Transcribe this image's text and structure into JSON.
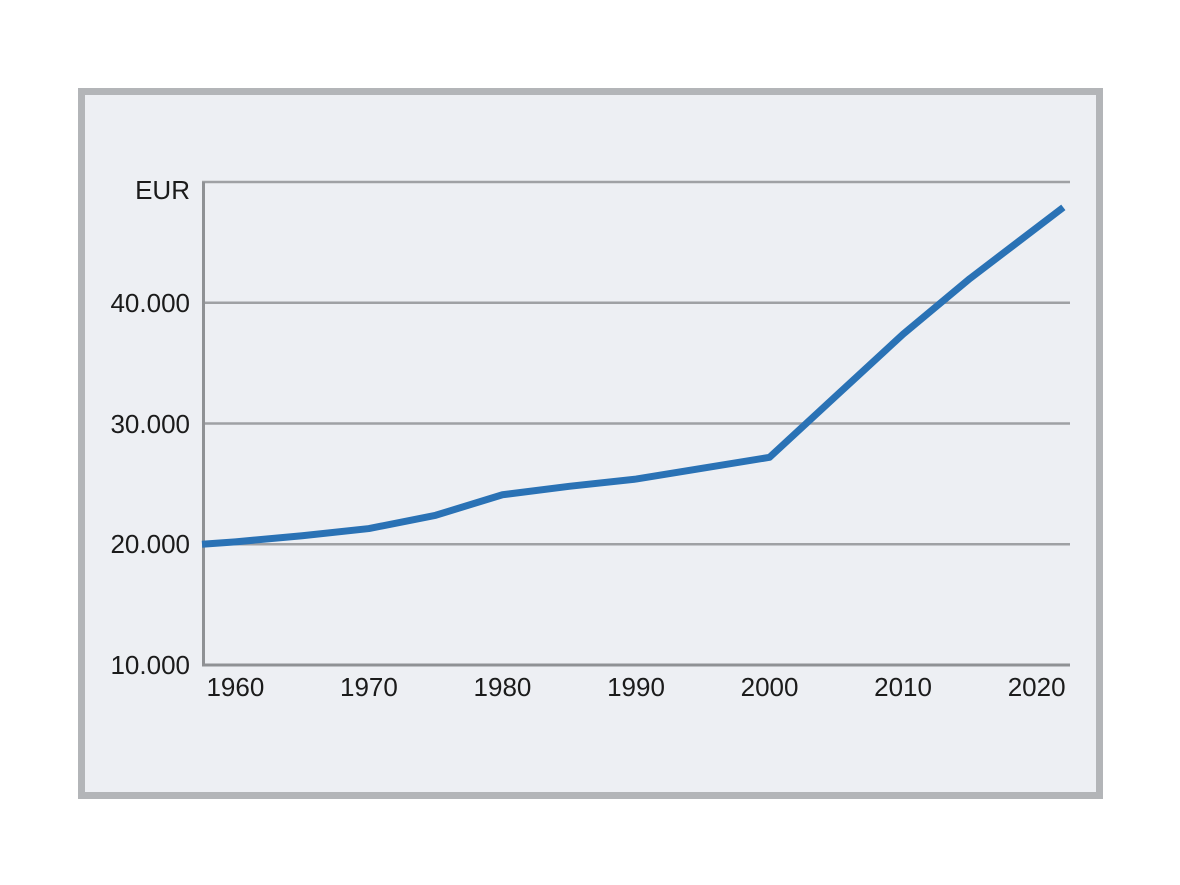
{
  "panel": {
    "background_color": "#edeff3",
    "border_color": "#b3b5b8"
  },
  "chart_data": {
    "type": "line",
    "title": "",
    "xlabel": "",
    "ylabel": "EUR",
    "unit_label": "EUR",
    "x": [
      1957.5,
      1960,
      1965,
      1970,
      1975,
      1980,
      1985,
      1990,
      1995,
      2000,
      2005,
      2010,
      2015,
      2022
    ],
    "series": [
      {
        "name": "EUR",
        "color": "#2a72b5",
        "values": [
          20000,
          20200,
          20700,
          21300,
          22400,
          24100,
          24800,
          25400,
          26300,
          27200,
          32300,
          37400,
          42000,
          47900
        ]
      }
    ],
    "x_range": [
      1957.5,
      2022.5
    ],
    "y_range": [
      10000,
      50000
    ],
    "grid": true,
    "legend_position": "none",
    "grid_color": "#9fa1a4",
    "axis_color": "#8f9194",
    "text_color": "#1b1b1b",
    "x_ticks": [
      {
        "value": 1960,
        "label": "1960"
      },
      {
        "value": 1970,
        "label": "1970"
      },
      {
        "value": 1980,
        "label": "1980"
      },
      {
        "value": 1990,
        "label": "1990"
      },
      {
        "value": 2000,
        "label": "2000"
      },
      {
        "value": 2010,
        "label": "2010"
      },
      {
        "value": 2020,
        "label": "2020"
      }
    ],
    "y_ticks": [
      {
        "value": 10000,
        "label": "10.000"
      },
      {
        "value": 20000,
        "label": "20.000"
      },
      {
        "value": 30000,
        "label": "30.000"
      },
      {
        "value": 40000,
        "label": "40.000"
      }
    ],
    "y_gridlines": [
      20000,
      30000,
      40000,
      50000
    ]
  }
}
